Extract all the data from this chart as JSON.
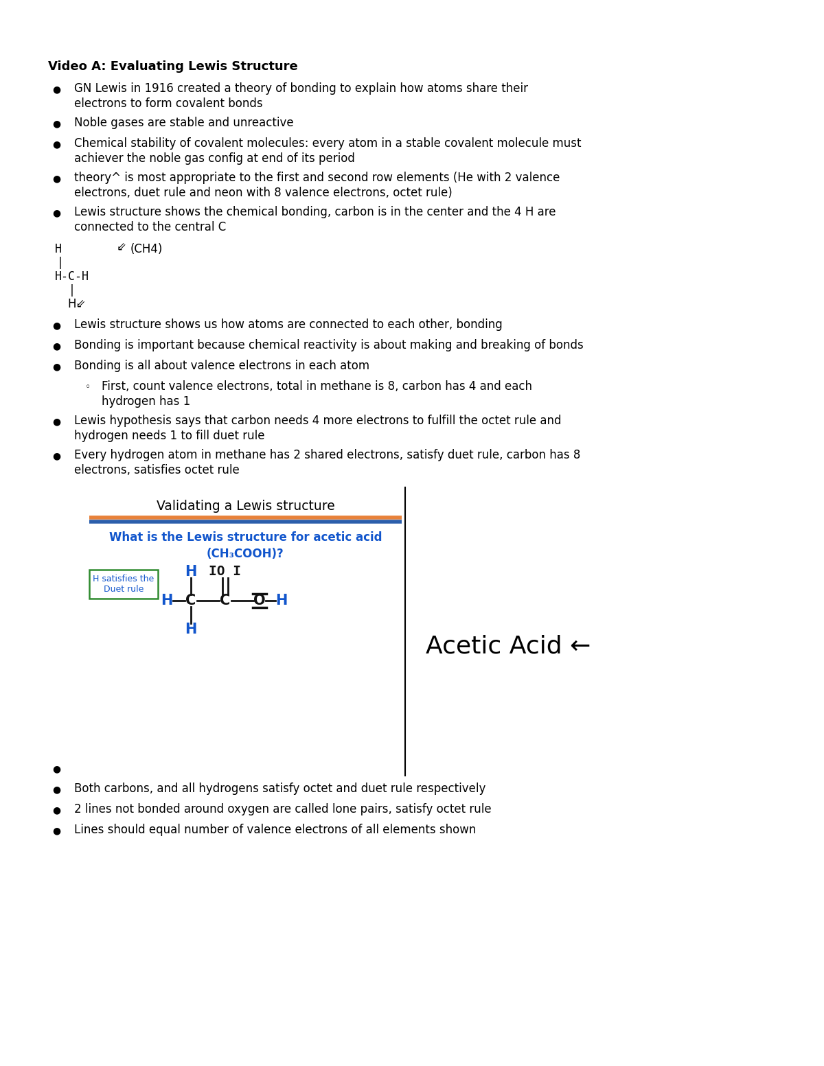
{
  "bg_color": "#ffffff",
  "title": "Video A: Evaluating Lewis Structure",
  "bullets_section1": [
    [
      "GN Lewis in 1916 created a theory of bonding to explain how atoms share their",
      "electrons to form covalent bonds"
    ],
    [
      "Noble gases are stable and unreactive"
    ],
    [
      "Chemical stability of covalent molecules: every atom in a stable covalent molecule must",
      "achiever the noble gas config at end of its period"
    ],
    [
      "theory^ is most appropriate to the first and second row elements (He with 2 valence",
      "electrons, duet rule and neon with 8 valence electrons, octet rule)"
    ],
    [
      "Lewis structure shows the chemical bonding, carbon is in the center and the 4 H are",
      "connected to the central C"
    ]
  ],
  "bullets_section2": [
    [
      "Lewis structure shows us how atoms are connected to each other, bonding"
    ],
    [
      "Bonding is important because chemical reactivity is about making and breaking of bonds"
    ],
    [
      "Bonding is all about valence electrons in each atom"
    ]
  ],
  "sub_bullet": [
    "First, count valence electrons, total in methane is 8, carbon has 4 and each",
    "hydrogen has 1"
  ],
  "bullets_section3": [
    [
      "Lewis hypothesis says that carbon needs 4 more electrons to fulfill the octet rule and",
      "hydrogen needs 1 to fill duet rule"
    ],
    [
      "Every hydrogen atom in methane has 2 shared electrons, satisfy duet rule, carbon has 8",
      "electrons, satisfies octet rule"
    ]
  ],
  "box_title": "Validating a Lewis structure",
  "box_subtitle_line1": "What is the Lewis structure for acetic acid",
  "box_subtitle_line2": "(CH₃COOH)?",
  "box_label_line1": "H satisfies the",
  "box_label_line2": "Duet rule",
  "acetic_acid_label": "Acetic Acid ←",
  "bullets_section4": [
    [
      "Both carbons, and all hydrogens satisfy octet and duet rule respectively"
    ],
    [
      "2 lines not bonded around oxygen are called lone pairs, satisfy octet rule"
    ],
    [
      "Lines should equal number of valence electrons of all elements shown"
    ]
  ],
  "orange_color": "#E8823A",
  "blue_color": "#2B5EAB",
  "text_blue": "#1155CC",
  "green_border": "#2e8b2e"
}
